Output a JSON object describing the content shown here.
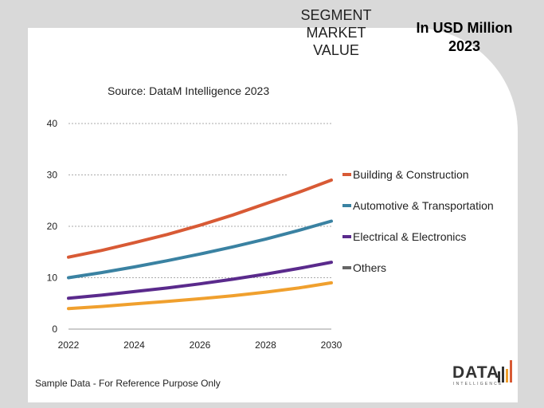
{
  "header": {
    "segment_title_lines": [
      "SEGMENT",
      "MARKET",
      "VALUE"
    ],
    "unit_title_lines": [
      "In USD Million",
      "2023"
    ]
  },
  "source_text": "Source: DataM Intelligence  2023",
  "footnote": "Sample Data - For Reference Purpose Only",
  "logo": {
    "text": "DATA",
    "subtext": "INTELLIGENCE"
  },
  "colors": {
    "building": "#d85a35",
    "automotive": "#3a82a2",
    "electrical": "#5a2a8c",
    "others": "#f0a02e",
    "others_legend": "#666666"
  },
  "chart_data": {
    "type": "line",
    "title": "",
    "xlabel": "",
    "ylabel": "",
    "x_ticks": [
      "2022",
      "2024",
      "2026",
      "2028",
      "2030"
    ],
    "y_ticks": [
      "0",
      "10",
      "20",
      "30",
      "40"
    ],
    "xlim": [
      2022,
      2030
    ],
    "ylim": [
      0,
      40
    ],
    "grid": true,
    "legend_position": "right",
    "x": [
      2022,
      2023,
      2024,
      2025,
      2026,
      2027,
      2028,
      2029,
      2030
    ],
    "series": [
      {
        "name": "Building & Construction",
        "color_key": "building",
        "values": [
          14,
          15.3,
          16.8,
          18.4,
          20.2,
          22.2,
          24.4,
          26.6,
          29
        ]
      },
      {
        "name": "Automotive & Transportation",
        "color_key": "automotive",
        "values": [
          10,
          11,
          12.1,
          13.3,
          14.6,
          16,
          17.5,
          19.2,
          21
        ]
      },
      {
        "name": "Electrical & Electronics",
        "color_key": "electrical",
        "values": [
          6,
          6.6,
          7.3,
          8,
          8.8,
          9.7,
          10.7,
          11.8,
          13
        ]
      },
      {
        "name": "Others",
        "color_key": "others",
        "legend_color_key": "others_legend",
        "values": [
          4,
          4.4,
          4.9,
          5.4,
          5.9,
          6.5,
          7.2,
          8,
          9
        ]
      }
    ]
  }
}
